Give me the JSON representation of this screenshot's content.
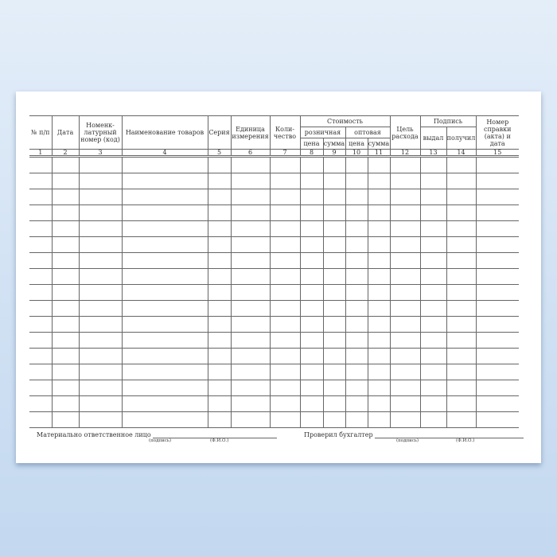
{
  "form": {
    "headers": {
      "c1": "№ п/п",
      "c2": "Дата",
      "c3": "Номенк-латурный номер (код)",
      "c4": "Наименование товаров",
      "c5": "Серия",
      "c6": "Единица измерения",
      "c7": "Коли-чество",
      "cost": "Стоимость",
      "retail": "розничная",
      "wholesale": "оптовая",
      "price": "цена",
      "sum": "сумма",
      "c12": "Цель расхода",
      "sign": "Подпись",
      "c13": "выдал",
      "c14": "получил",
      "c15": "Номер справки (акта) и дата"
    },
    "column_numbers": [
      "1",
      "2",
      "3",
      "4",
      "5",
      "6",
      "7",
      "8",
      "9",
      "10",
      "11",
      "12",
      "13",
      "14",
      "15"
    ],
    "footer": {
      "left_label": "Материально ответственное лицо",
      "right_label": "Проверил бухгалтер",
      "signature_hint": "(подпись)",
      "name_hint": "(Ф.И.О.)"
    }
  }
}
